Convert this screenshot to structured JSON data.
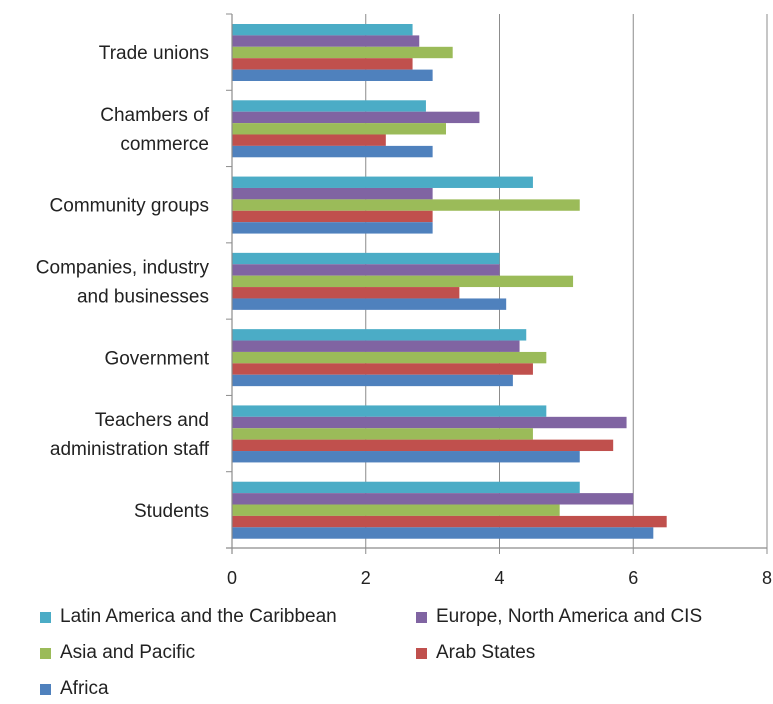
{
  "chart_data": {
    "type": "bar",
    "orientation": "horizontal",
    "categories": [
      "Trade unions",
      "Chambers of commerce",
      "Community groups",
      "Companies, industry and businesses",
      "Government",
      "Teachers and administration staff",
      "Students"
    ],
    "category_lines": [
      [
        "Trade unions"
      ],
      [
        "Chambers of",
        "commerce"
      ],
      [
        "Community groups"
      ],
      [
        "Companies, industry",
        "and businesses"
      ],
      [
        "Government"
      ],
      [
        "Teachers and",
        "administration staff"
      ],
      [
        "Students"
      ]
    ],
    "series": [
      {
        "name": "Latin America and the Caribbean",
        "color": "#4BACC6",
        "values": [
          2.7,
          2.9,
          4.5,
          4.0,
          4.4,
          4.7,
          5.2
        ]
      },
      {
        "name": "Europe, North America and CIS",
        "color": "#8064A2",
        "values": [
          2.8,
          3.7,
          3.0,
          4.0,
          4.3,
          5.9,
          6.0
        ]
      },
      {
        "name": "Asia and Pacific",
        "color": "#9BBB59",
        "values": [
          3.3,
          3.2,
          5.2,
          5.1,
          4.7,
          4.5,
          4.9
        ]
      },
      {
        "name": "Arab States",
        "color": "#C0504D",
        "values": [
          2.7,
          2.3,
          3.0,
          3.4,
          4.5,
          5.7,
          6.5
        ]
      },
      {
        "name": "Africa",
        "color": "#4F81BD",
        "values": [
          3.0,
          3.0,
          3.0,
          4.1,
          4.2,
          5.2,
          6.3
        ]
      }
    ],
    "xlim": [
      0,
      8
    ],
    "xticks": [
      "0",
      "2",
      "4",
      "6",
      "8"
    ],
    "grid": "vertical",
    "legend_position": "bottom",
    "title": "",
    "xlabel": "",
    "ylabel": ""
  }
}
